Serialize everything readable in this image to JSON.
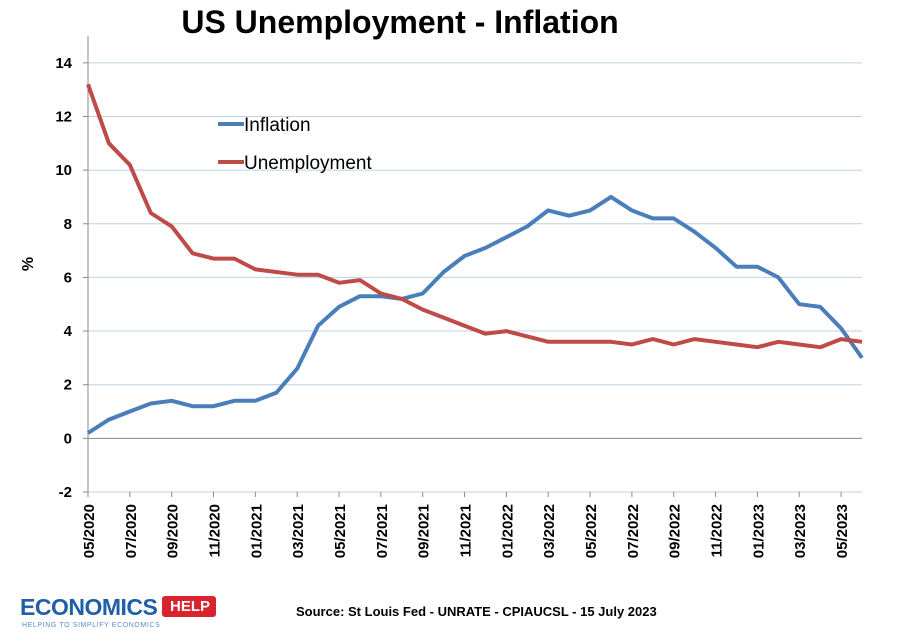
{
  "title": "US Unemployment - Inflation",
  "source": "Source: St Louis Fed - UNRATE - CPIAUCSL - 15 July 2023",
  "logo": {
    "word": "ECONOMICS",
    "badge": "HELP",
    "tagline": "HELPING TO SIMPLIFY ECONOMICS"
  },
  "colors": {
    "inflation": "#4a7ebb",
    "unemployment": "#be4b48",
    "grid": "#bcd0e6"
  },
  "chart_data": {
    "type": "line",
    "title": "US Unemployment - Inflation",
    "xlabel": "",
    "ylabel": "%",
    "ylim": [
      -2,
      15
    ],
    "yticks": [
      -2,
      0,
      2,
      4,
      6,
      8,
      10,
      12,
      14
    ],
    "grid": true,
    "legend": "upper-middle",
    "x": [
      "05/2020",
      "06/2020",
      "07/2020",
      "08/2020",
      "09/2020",
      "10/2020",
      "11/2020",
      "12/2020",
      "01/2021",
      "02/2021",
      "03/2021",
      "04/2021",
      "05/2021",
      "06/2021",
      "07/2021",
      "08/2021",
      "09/2021",
      "10/2021",
      "11/2021",
      "12/2021",
      "01/2022",
      "02/2022",
      "03/2022",
      "04/2022",
      "05/2022",
      "06/2022",
      "07/2022",
      "08/2022",
      "09/2022",
      "10/2022",
      "11/2022",
      "12/2022",
      "01/2023",
      "02/2023",
      "03/2023",
      "04/2023",
      "05/2023",
      "06/2023"
    ],
    "xtick_labels": [
      "05/2020",
      "07/2020",
      "09/2020",
      "11/2020",
      "01/2021",
      "03/2021",
      "05/2021",
      "07/2021",
      "09/2021",
      "11/2021",
      "01/2022",
      "03/2022",
      "05/2022",
      "07/2022",
      "09/2022",
      "11/2022",
      "01/2023",
      "03/2023",
      "05/2023"
    ],
    "series": [
      {
        "name": "Inflation",
        "color": "#4a7ebb",
        "values": [
          0.2,
          0.7,
          1.0,
          1.3,
          1.4,
          1.2,
          1.2,
          1.4,
          1.4,
          1.7,
          2.6,
          4.2,
          4.9,
          5.3,
          5.3,
          5.2,
          5.4,
          6.2,
          6.8,
          7.1,
          7.5,
          7.9,
          8.5,
          8.3,
          8.5,
          9.0,
          8.5,
          8.2,
          8.2,
          7.7,
          7.1,
          6.4,
          6.4,
          6.0,
          5.0,
          4.9,
          4.1,
          3.0
        ]
      },
      {
        "name": "Unemployment",
        "color": "#be4b48",
        "values": [
          13.2,
          11.0,
          10.2,
          8.4,
          7.9,
          6.9,
          6.7,
          6.7,
          6.3,
          6.2,
          6.1,
          6.1,
          5.8,
          5.9,
          5.4,
          5.2,
          4.8,
          4.5,
          4.2,
          3.9,
          4.0,
          3.8,
          3.6,
          3.6,
          3.6,
          3.6,
          3.5,
          3.7,
          3.5,
          3.7,
          3.6,
          3.5,
          3.4,
          3.6,
          3.5,
          3.4,
          3.7,
          3.6
        ]
      }
    ]
  }
}
